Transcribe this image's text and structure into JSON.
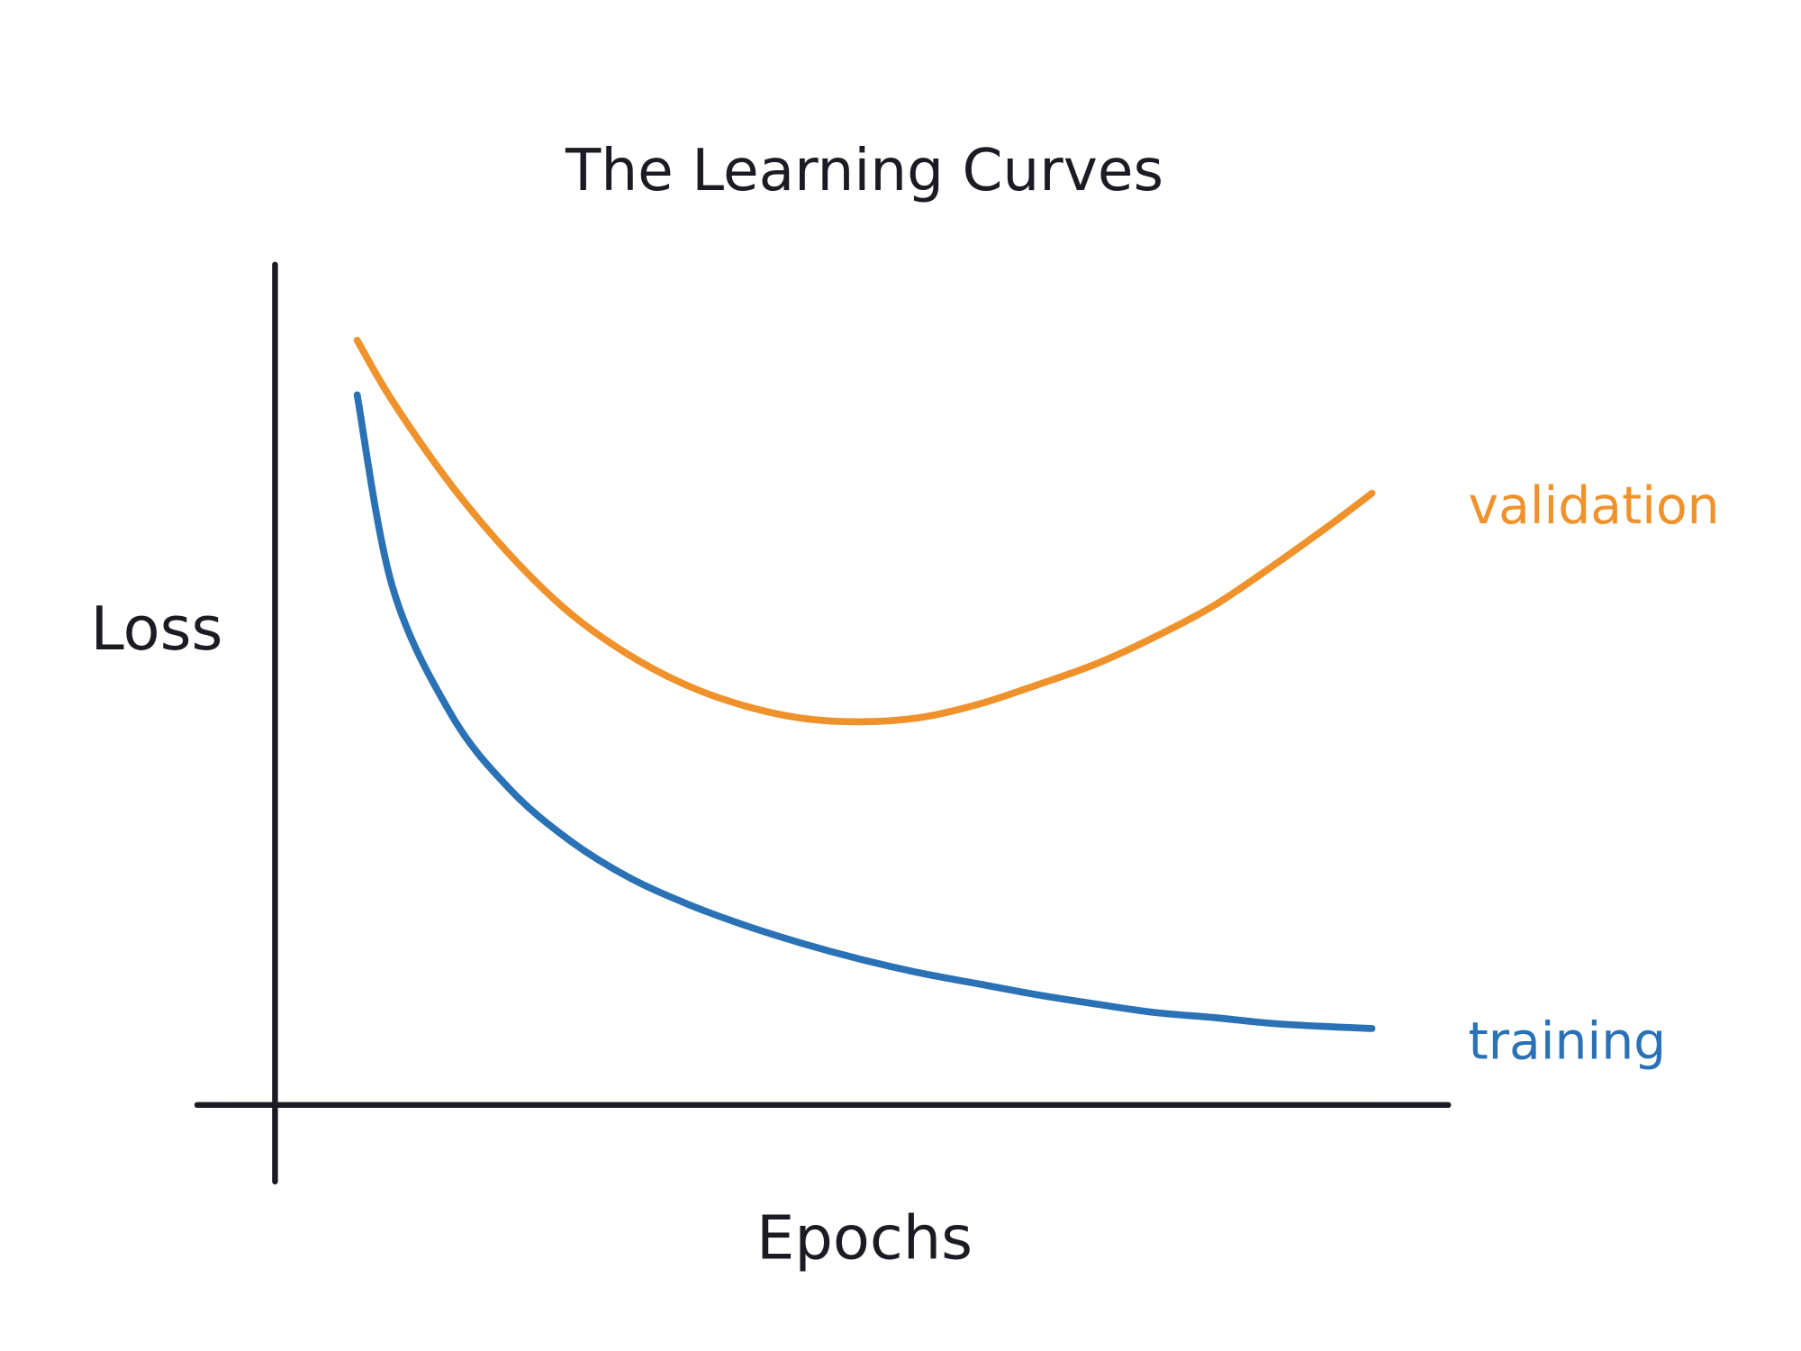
{
  "chart_data": {
    "type": "line",
    "title": "The Learning Curves",
    "x_label": "Epochs",
    "y_label": "Loss",
    "xlim": [
      0,
      100
    ],
    "ylim": [
      0,
      100
    ],
    "x": [
      7,
      10,
      15,
      20,
      25,
      30,
      35,
      40,
      45,
      50,
      55,
      60,
      65,
      70,
      75,
      80,
      85,
      90,
      93.5
    ],
    "series": [
      {
        "name": "validation",
        "color": "#f0922b",
        "values": [
          91.0,
          83.8,
          73.8,
          65.5,
          58.7,
          53.7,
          50.0,
          47.5,
          46.0,
          45.6,
          46.1,
          47.7,
          50.0,
          52.5,
          55.7,
          59.4,
          64.1,
          69.1,
          72.8
        ]
      },
      {
        "name": "training",
        "color": "#2a72b5",
        "values": [
          84.5,
          61.7,
          46.5,
          37.6,
          31.6,
          27.2,
          24.0,
          21.4,
          19.2,
          17.3,
          15.7,
          14.4,
          13.1,
          12.0,
          11.0,
          10.4,
          9.7,
          9.3,
          9.1
        ]
      }
    ]
  }
}
